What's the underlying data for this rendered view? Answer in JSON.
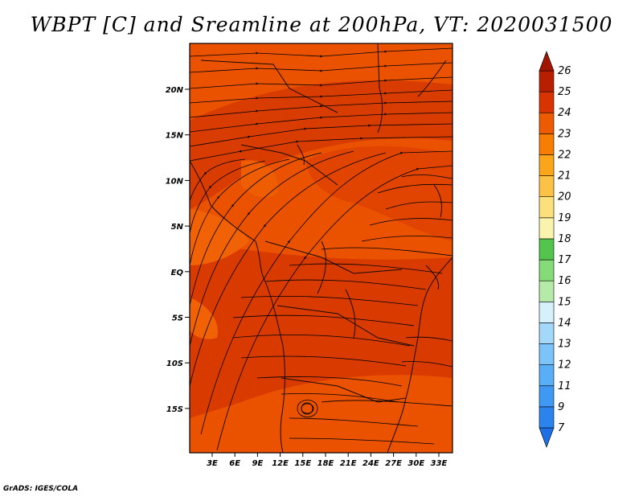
{
  "title": "WBPT [C] and Sreamline at 200hPa, VT: 2020031500",
  "credit": "GrADS: IGES/COLA",
  "map": {
    "lon_ticks": [
      "3E",
      "6E",
      "9E",
      "12E",
      "15E",
      "18E",
      "21E",
      "24E",
      "27E",
      "30E",
      "33E"
    ],
    "lat_ticks": [
      "20N",
      "15N",
      "10N",
      "5N",
      "EQ",
      "5S",
      "10S",
      "15S"
    ]
  },
  "colorbar": {
    "levels": [
      "7",
      "9",
      "11",
      "12",
      "13",
      "14",
      "15",
      "16",
      "17",
      "18",
      "19",
      "20",
      "21",
      "22",
      "23",
      "24",
      "25",
      "26"
    ],
    "colors": [
      "#1e6ee6",
      "#2b83ee",
      "#3f98f3",
      "#58aef7",
      "#7cc3fa",
      "#a4d8fb",
      "#d6f1fc",
      "#b6eaa9",
      "#86db79",
      "#54c54c",
      "#f9f3ae",
      "#fbe07b",
      "#fcc246",
      "#fba51b",
      "#f77d04",
      "#ee5a00",
      "#d83300",
      "#b81e00",
      "#a01600"
    ]
  },
  "chart_data": {
    "type": "heatmap",
    "variable": "WBPT [C]",
    "level": "200hPa",
    "valid_time": "2020031500",
    "lon_range": [
      0,
      35
    ],
    "lat_range": [
      -20,
      24
    ],
    "value_range_shown": [
      23,
      25
    ]
  }
}
